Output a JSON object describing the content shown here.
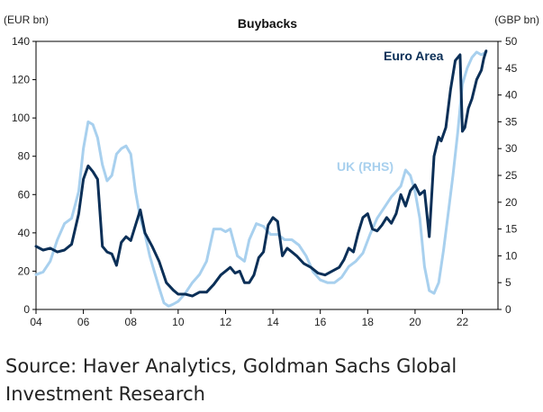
{
  "chart_data": {
    "type": "line",
    "title": "Buybacks",
    "ylabel_left": "(EUR bn)",
    "ylabel_right": "(GBP bn)",
    "x_ticks": [
      "04",
      "06",
      "08",
      "10",
      "12",
      "14",
      "16",
      "18",
      "20",
      "22"
    ],
    "x_tick_values": [
      2004,
      2006,
      2008,
      2010,
      2012,
      2014,
      2016,
      2018,
      2020,
      2022
    ],
    "xlim": [
      2004,
      2023.5
    ],
    "y_left": {
      "lim": [
        0,
        140
      ],
      "ticks": [
        "0",
        "20",
        "40",
        "60",
        "80",
        "100",
        "120",
        "140"
      ],
      "tick_values": [
        0,
        20,
        40,
        60,
        80,
        100,
        120,
        140
      ]
    },
    "y_right": {
      "lim": [
        0,
        50
      ],
      "ticks": [
        "0",
        "5",
        "10",
        "15",
        "20",
        "25",
        "30",
        "35",
        "40",
        "45",
        "50"
      ],
      "tick_values": [
        0,
        5,
        10,
        15,
        20,
        25,
        30,
        35,
        40,
        45,
        50
      ]
    },
    "series": [
      {
        "name": "Euro Area",
        "label": "Euro Area",
        "axis": "left",
        "color": "#0b2f57",
        "x": [
          2004.0,
          2004.3,
          2004.6,
          2004.9,
          2005.2,
          2005.5,
          2005.8,
          2006.0,
          2006.2,
          2006.4,
          2006.6,
          2006.8,
          2007.0,
          2007.2,
          2007.4,
          2007.6,
          2007.8,
          2008.0,
          2008.2,
          2008.4,
          2008.6,
          2008.9,
          2009.2,
          2009.5,
          2009.8,
          2010.0,
          2010.3,
          2010.6,
          2010.9,
          2011.2,
          2011.5,
          2011.8,
          2012.0,
          2012.2,
          2012.4,
          2012.6,
          2012.8,
          2013.0,
          2013.2,
          2013.4,
          2013.6,
          2013.8,
          2014.0,
          2014.2,
          2014.4,
          2014.6,
          2014.8,
          2015.0,
          2015.3,
          2015.6,
          2015.9,
          2016.2,
          2016.5,
          2016.8,
          2017.0,
          2017.2,
          2017.4,
          2017.6,
          2017.8,
          2018.0,
          2018.2,
          2018.4,
          2018.6,
          2018.8,
          2019.0,
          2019.2,
          2019.4,
          2019.6,
          2019.8,
          2020.0,
          2020.2,
          2020.4,
          2020.6,
          2020.8,
          2021.0,
          2021.1,
          2021.3,
          2021.5,
          2021.7,
          2021.9,
          2022.0,
          2022.1,
          2022.25,
          2022.4,
          2022.6,
          2022.8,
          2022.9,
          2023.0
        ],
        "y": [
          33,
          31,
          32,
          30,
          31,
          34,
          50,
          68,
          75,
          72,
          68,
          33,
          30,
          29,
          23,
          35,
          38,
          36,
          44,
          52,
          40,
          33,
          25,
          14,
          10,
          8,
          8,
          7,
          9,
          9,
          13,
          18,
          20,
          22,
          19,
          20,
          14,
          14,
          18,
          27,
          30,
          44,
          48,
          46,
          28,
          32,
          30,
          28,
          24,
          22,
          19,
          18,
          20,
          22,
          26,
          32,
          30,
          40,
          48,
          50,
          42,
          41,
          44,
          48,
          45,
          50,
          60,
          54,
          62,
          65,
          60,
          62,
          38,
          80,
          90,
          88,
          95,
          115,
          130,
          133,
          93,
          95,
          105,
          110,
          120,
          125,
          131,
          135
        ]
      },
      {
        "name": "UK (RHS)",
        "label": "UK (RHS)",
        "axis": "right",
        "color": "#a8d0ee",
        "x": [
          2004.0,
          2004.3,
          2004.6,
          2004.9,
          2005.2,
          2005.5,
          2005.8,
          2006.0,
          2006.2,
          2006.4,
          2006.6,
          2006.8,
          2007.0,
          2007.2,
          2007.4,
          2007.6,
          2007.8,
          2008.0,
          2008.2,
          2008.4,
          2008.6,
          2008.8,
          2009.0,
          2009.2,
          2009.4,
          2009.6,
          2009.8,
          2010.0,
          2010.3,
          2010.6,
          2010.9,
          2011.2,
          2011.5,
          2011.8,
          2012.0,
          2012.2,
          2012.5,
          2012.8,
          2013.0,
          2013.3,
          2013.6,
          2013.9,
          2014.2,
          2014.5,
          2014.8,
          2015.1,
          2015.4,
          2015.7,
          2016.0,
          2016.3,
          2016.6,
          2016.9,
          2017.2,
          2017.5,
          2017.8,
          2018.1,
          2018.4,
          2018.7,
          2019.0,
          2019.2,
          2019.4,
          2019.6,
          2019.8,
          2020.0,
          2020.2,
          2020.4,
          2020.6,
          2020.8,
          2021.0,
          2021.2,
          2021.4,
          2021.6,
          2021.8,
          2022.0,
          2022.2,
          2022.4,
          2022.6,
          2022.8,
          2023.0
        ],
        "y": [
          6.5,
          7,
          9,
          13,
          16,
          17,
          22,
          30,
          35,
          34.5,
          32,
          27,
          24,
          25,
          29,
          30,
          30.5,
          29,
          22,
          17,
          14,
          10,
          7,
          4,
          1.2,
          0.6,
          1,
          1.5,
          3,
          5,
          6.5,
          9,
          15,
          15,
          14.5,
          15,
          10,
          9,
          13,
          16,
          15.5,
          14,
          14,
          13,
          13,
          12,
          10,
          7,
          5.5,
          5,
          5,
          6,
          8,
          9,
          10.5,
          14,
          17,
          19,
          21,
          22,
          23,
          26,
          25,
          22,
          17,
          8,
          3.5,
          3,
          5,
          11,
          18,
          25,
          33,
          42,
          45,
          47,
          48,
          47.5,
          48
        ]
      }
    ],
    "annotations": [
      {
        "text": "Euro Area",
        "series": "Euro Area"
      },
      {
        "text": "UK (RHS)",
        "series": "UK (RHS)"
      }
    ]
  },
  "source_text": "Source: Haver Analytics, Goldman Sachs Global Investment Research"
}
